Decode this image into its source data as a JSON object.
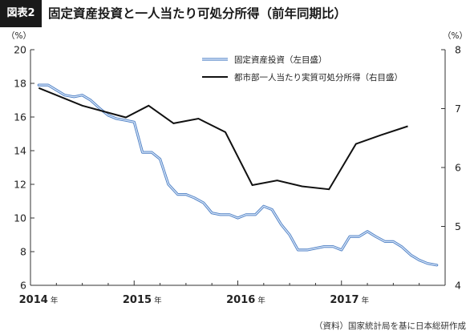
{
  "header": {
    "tag": "図表2",
    "title": "固定資産投資と一人当たり可処分所得（前年同期比）"
  },
  "source": "（資料）国家統計局を基に日本総研作成",
  "chart_data": {
    "type": "line",
    "title": "固定資産投資と一人当たり可処分所得（前年同期比）",
    "yunit_left": "（%）",
    "yunit_right": "（%）",
    "y_left": {
      "min": 6,
      "max": 20,
      "ticks": [
        6,
        8,
        10,
        12,
        14,
        16,
        18,
        20
      ]
    },
    "y_right": {
      "min": 4,
      "max": 8,
      "ticks": [
        4,
        5,
        6,
        7,
        8
      ]
    },
    "x": {
      "min": 2014.0,
      "max": 2018.0
    },
    "x_tick_labels": [
      {
        "pos": 2014.0,
        "year": "2014",
        "suffix": "年"
      },
      {
        "pos": 2015.0,
        "year": "2015",
        "suffix": "年"
      },
      {
        "pos": 2016.0,
        "year": "2016",
        "suffix": "年"
      },
      {
        "pos": 2017.0,
        "year": "2017",
        "suffix": "年"
      }
    ],
    "legend": {
      "placement": "top-center"
    },
    "series": [
      {
        "name": "固定資産投資（左目盛）",
        "axis": "left",
        "color": "#7ea6e0",
        "points": [
          [
            2014.08,
            17.9
          ],
          [
            2014.17,
            17.9
          ],
          [
            2014.25,
            17.6
          ],
          [
            2014.33,
            17.3
          ],
          [
            2014.42,
            17.2
          ],
          [
            2014.5,
            17.3
          ],
          [
            2014.58,
            17.0
          ],
          [
            2014.67,
            16.5
          ],
          [
            2014.75,
            16.1
          ],
          [
            2014.83,
            15.9
          ],
          [
            2014.92,
            15.8
          ],
          [
            2015.0,
            15.7
          ],
          [
            2015.08,
            13.9
          ],
          [
            2015.17,
            13.9
          ],
          [
            2015.25,
            13.5
          ],
          [
            2015.33,
            12.0
          ],
          [
            2015.42,
            11.4
          ],
          [
            2015.5,
            11.4
          ],
          [
            2015.58,
            11.2
          ],
          [
            2015.67,
            10.9
          ],
          [
            2015.75,
            10.3
          ],
          [
            2015.83,
            10.2
          ],
          [
            2015.92,
            10.2
          ],
          [
            2016.0,
            10.0
          ],
          [
            2016.08,
            10.2
          ],
          [
            2016.17,
            10.2
          ],
          [
            2016.25,
            10.7
          ],
          [
            2016.33,
            10.5
          ],
          [
            2016.42,
            9.6
          ],
          [
            2016.5,
            9.0
          ],
          [
            2016.58,
            8.1
          ],
          [
            2016.67,
            8.1
          ],
          [
            2016.75,
            8.2
          ],
          [
            2016.83,
            8.3
          ],
          [
            2016.92,
            8.3
          ],
          [
            2017.0,
            8.1
          ],
          [
            2017.08,
            8.9
          ],
          [
            2017.17,
            8.9
          ],
          [
            2017.25,
            9.2
          ],
          [
            2017.33,
            8.9
          ],
          [
            2017.42,
            8.6
          ],
          [
            2017.5,
            8.6
          ],
          [
            2017.58,
            8.3
          ],
          [
            2017.67,
            7.8
          ],
          [
            2017.75,
            7.5
          ],
          [
            2017.83,
            7.3
          ],
          [
            2017.92,
            7.2
          ]
        ]
      },
      {
        "name": "都市部一人当たり実質可処分所得（右目盛）",
        "axis": "right",
        "color": "#111111",
        "points": [
          [
            2014.08,
            7.35
          ],
          [
            2014.5,
            7.05
          ],
          [
            2014.92,
            6.85
          ],
          [
            2015.14,
            7.05
          ],
          [
            2015.38,
            6.75
          ],
          [
            2015.62,
            6.83
          ],
          [
            2015.88,
            6.6
          ],
          [
            2016.14,
            5.7
          ],
          [
            2016.38,
            5.78
          ],
          [
            2016.62,
            5.68
          ],
          [
            2016.88,
            5.63
          ],
          [
            2017.14,
            6.4
          ],
          [
            2017.38,
            6.55
          ],
          [
            2017.64,
            6.7
          ]
        ]
      }
    ]
  }
}
